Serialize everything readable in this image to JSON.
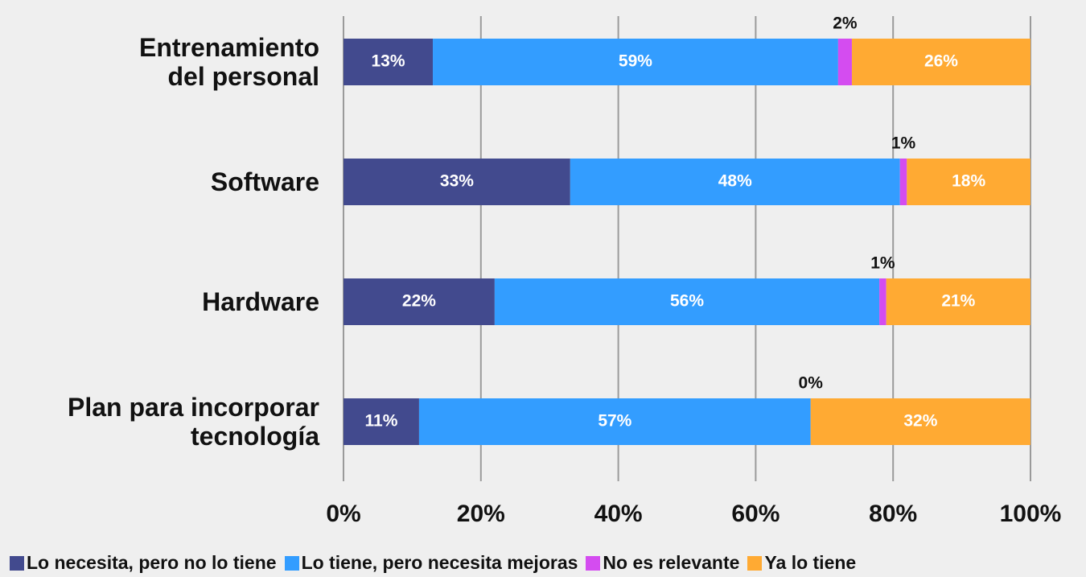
{
  "chart_data": {
    "type": "stacked_bar_horizontal",
    "categories": [
      "Entrenamiento\ndel personal",
      "Software",
      "Hardware",
      "Plan para incorporar\ntecnología"
    ],
    "series": [
      {
        "name": "Lo necesita, pero no lo tiene",
        "color": "#424a8e",
        "values": [
          13,
          33,
          22,
          11
        ],
        "value_labels": [
          "13%",
          "33%",
          "22%",
          "11%"
        ]
      },
      {
        "name": "Lo tiene, pero necesita mejoras",
        "color": "#339dff",
        "values": [
          59,
          48,
          56,
          57
        ],
        "value_labels": [
          "59%",
          "48%",
          "56%",
          "57%"
        ]
      },
      {
        "name": "No es relevante",
        "color": "#d44cf0",
        "values": [
          2,
          1,
          1,
          0
        ],
        "value_labels": [
          "2%",
          "1%",
          "1%",
          "0%"
        ]
      },
      {
        "name": "Ya lo tiene",
        "color": "#ffaa33",
        "values": [
          26,
          18,
          21,
          32
        ],
        "value_labels": [
          "26%",
          "18%",
          "21%",
          "32%"
        ]
      }
    ],
    "xlim": [
      0,
      100
    ],
    "xticks": [
      {
        "value": 0,
        "label": "0%"
      },
      {
        "value": 20,
        "label": "20%"
      },
      {
        "value": 40,
        "label": "40%"
      },
      {
        "value": 60,
        "label": "60%"
      },
      {
        "value": 80,
        "label": "80%"
      },
      {
        "value": 100,
        "label": "100%"
      }
    ],
    "grid": true,
    "legend": "bottom"
  }
}
